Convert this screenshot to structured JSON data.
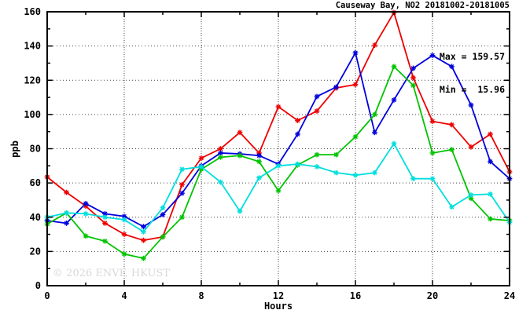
{
  "title": "Causeway Bay, NO2 20181002-20181005",
  "stats": {
    "max_label": "Max = 159.57",
    "min_label": "Min =  15.96"
  },
  "watermark": "© 2026 ENVF, HKUST",
  "chart_data": {
    "type": "line",
    "title": "Causeway Bay, NO2 20181002-20181005",
    "xlabel": "Hours",
    "ylabel": "ppb",
    "xlim": [
      0,
      24
    ],
    "ylim": [
      0,
      160
    ],
    "x_major_ticks": [
      0,
      4,
      8,
      12,
      16,
      20,
      24
    ],
    "x_minor_step": 2,
    "y_major_ticks": [
      0,
      20,
      40,
      60,
      80,
      100,
      120,
      140,
      160
    ],
    "y_minor_step": 10,
    "grid": "dotted-at-major-ticks",
    "legend_position": "none",
    "max_value": 159.57,
    "min_value": 15.96,
    "x": [
      0,
      1,
      2,
      3,
      4,
      5,
      6,
      7,
      8,
      9,
      10,
      11,
      12,
      13,
      14,
      15,
      16,
      17,
      18,
      19,
      20,
      21,
      22,
      23,
      24
    ],
    "series": [
      {
        "name": "series-red",
        "color": "#ee0000",
        "values": [
          63.5,
          54.5,
          46.5,
          36.5,
          30,
          26.5,
          28.5,
          59,
          74.5,
          80,
          89.5,
          77.5,
          104.5,
          96.5,
          102,
          115.5,
          117.5,
          140.5,
          159.57,
          121.5,
          96,
          94,
          81,
          88.5,
          66.5
        ]
      },
      {
        "name": "series-blue",
        "color": "#0000dd",
        "values": [
          38,
          36.5,
          48,
          42,
          40.5,
          34.5,
          41.5,
          54,
          70,
          77.5,
          77,
          76,
          71,
          88.5,
          110.5,
          116,
          136,
          89.5,
          108.5,
          127,
          134.5,
          128,
          105.5,
          72.5,
          62.5
        ]
      },
      {
        "name": "series-green",
        "color": "#00c400",
        "values": [
          36,
          42.5,
          29,
          26,
          18.5,
          15.96,
          28.5,
          40,
          68,
          75,
          76,
          72.5,
          55.5,
          70.5,
          76.5,
          76.5,
          87,
          100,
          128,
          117,
          77.5,
          79.5,
          51,
          39,
          38
        ]
      },
      {
        "name": "series-cyan",
        "color": "#00dede",
        "values": [
          40,
          42.5,
          42,
          40,
          38.5,
          31.5,
          45.5,
          68,
          69.5,
          60.5,
          43.5,
          63,
          70,
          71,
          69.5,
          66,
          64.5,
          66,
          83,
          62.5,
          62.5,
          46,
          53,
          53.5,
          37
        ]
      }
    ]
  }
}
